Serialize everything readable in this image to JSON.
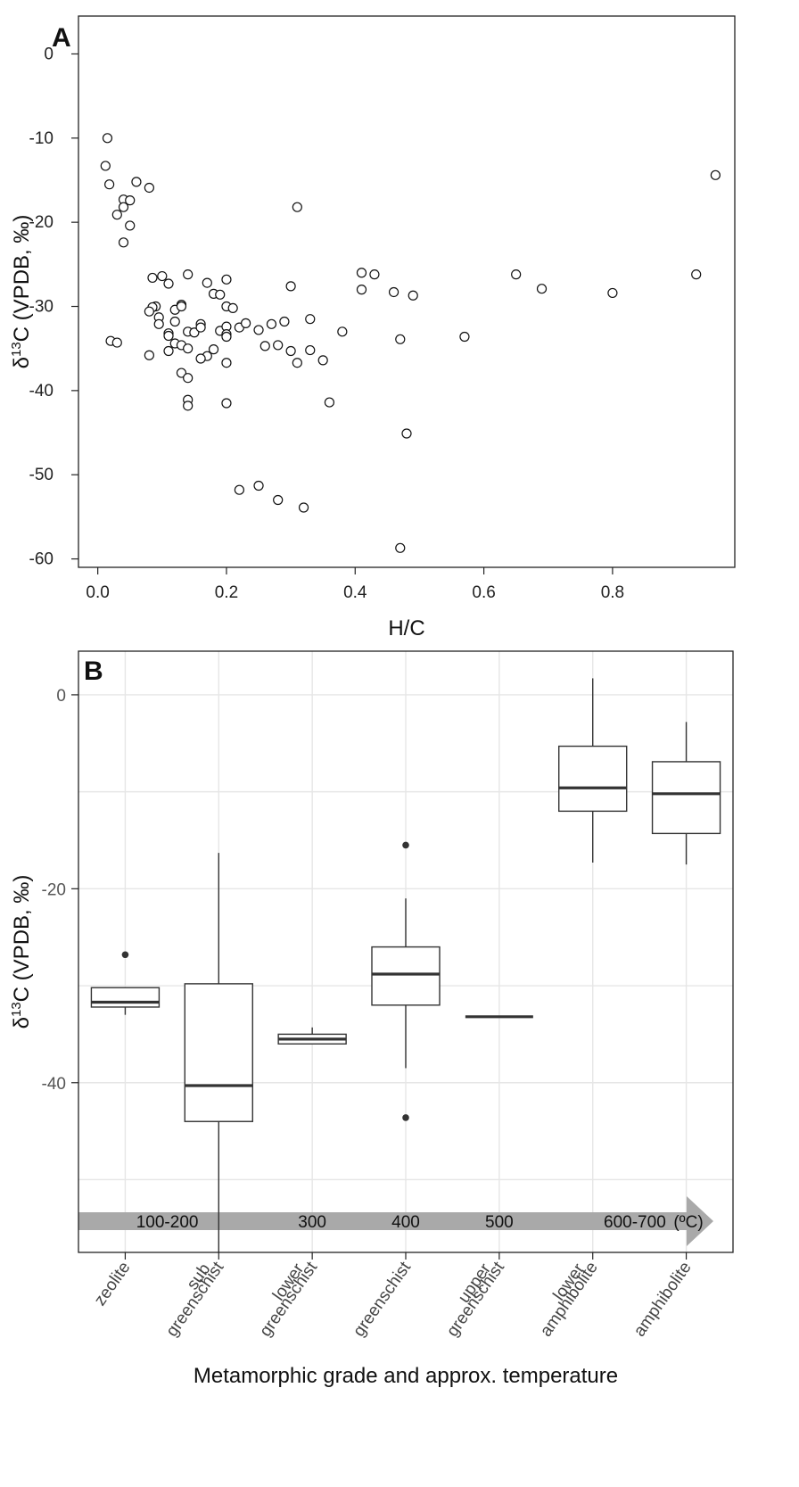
{
  "chart_data": [
    {
      "type": "scatter",
      "panel": "A",
      "xlabel": "H/C",
      "ylabel": "δ13C (VPDB, ‰)",
      "xlim": [
        -0.03,
        0.99
      ],
      "ylim": [
        -61,
        4.5
      ],
      "xticks": [
        0.0,
        0.2,
        0.4,
        0.6,
        0.8
      ],
      "xtick_labels": [
        "0.0",
        "0.2",
        "0.4",
        "0.6",
        "0.8"
      ],
      "yticks": [
        0,
        -10,
        -20,
        -30,
        -40,
        -50,
        -60
      ],
      "ytick_labels": [
        "0",
        "-10",
        "-20",
        "-30",
        "-40",
        "-50",
        "-60"
      ],
      "points": [
        [
          0.015,
          -10
        ],
        [
          0.012,
          -13.3
        ],
        [
          0.018,
          -15.5
        ],
        [
          0.06,
          -15.2
        ],
        [
          0.08,
          -15.9
        ],
        [
          0.04,
          -17.3
        ],
        [
          0.05,
          -17.4
        ],
        [
          0.04,
          -18.2
        ],
        [
          0.03,
          -19.1
        ],
        [
          0.05,
          -20.4
        ],
        [
          0.04,
          -22.4
        ],
        [
          0.31,
          -18.2
        ],
        [
          0.96,
          -14.4
        ],
        [
          0.02,
          -34.1
        ],
        [
          0.03,
          -34.3
        ],
        [
          0.08,
          -35.8
        ],
        [
          0.085,
          -26.6
        ],
        [
          0.1,
          -26.4
        ],
        [
          0.11,
          -27.3
        ],
        [
          0.14,
          -26.2
        ],
        [
          0.17,
          -27.2
        ],
        [
          0.2,
          -26.8
        ],
        [
          0.18,
          -28.5
        ],
        [
          0.19,
          -28.6
        ],
        [
          0.09,
          -30.0
        ],
        [
          0.085,
          -30.1
        ],
        [
          0.08,
          -30.6
        ],
        [
          0.095,
          -31.3
        ],
        [
          0.095,
          -32.1
        ],
        [
          0.12,
          -30.4
        ],
        [
          0.13,
          -29.8
        ],
        [
          0.13,
          -30.0
        ],
        [
          0.12,
          -31.8
        ],
        [
          0.11,
          -33.2
        ],
        [
          0.11,
          -33.5
        ],
        [
          0.12,
          -34.4
        ],
        [
          0.13,
          -34.6
        ],
        [
          0.14,
          -35.0
        ],
        [
          0.11,
          -35.3
        ],
        [
          0.14,
          -33.0
        ],
        [
          0.15,
          -33.1
        ],
        [
          0.16,
          -32.1
        ],
        [
          0.16,
          -32.5
        ],
        [
          0.19,
          -32.9
        ],
        [
          0.2,
          -32.4
        ],
        [
          0.2,
          -33.3
        ],
        [
          0.2,
          -33.6
        ],
        [
          0.18,
          -35.1
        ],
        [
          0.17,
          -35.9
        ],
        [
          0.16,
          -36.2
        ],
        [
          0.2,
          -30.0
        ],
        [
          0.21,
          -30.2
        ],
        [
          0.22,
          -32.5
        ],
        [
          0.23,
          -32.0
        ],
        [
          0.25,
          -32.8
        ],
        [
          0.27,
          -32.1
        ],
        [
          0.29,
          -31.8
        ],
        [
          0.26,
          -34.7
        ],
        [
          0.28,
          -34.6
        ],
        [
          0.3,
          -35.3
        ],
        [
          0.33,
          -35.2
        ],
        [
          0.33,
          -31.5
        ],
        [
          0.3,
          -27.6
        ],
        [
          0.31,
          -36.7
        ],
        [
          0.35,
          -36.4
        ],
        [
          0.38,
          -33.0
        ],
        [
          0.2,
          -36.7
        ],
        [
          0.13,
          -37.9
        ],
        [
          0.14,
          -38.5
        ],
        [
          0.14,
          -41.1
        ],
        [
          0.14,
          -41.8
        ],
        [
          0.2,
          -41.5
        ],
        [
          0.36,
          -41.4
        ],
        [
          0.41,
          -26.0
        ],
        [
          0.43,
          -26.2
        ],
        [
          0.41,
          -28.0
        ],
        [
          0.46,
          -28.3
        ],
        [
          0.49,
          -28.7
        ],
        [
          0.47,
          -33.9
        ],
        [
          0.57,
          -33.6
        ],
        [
          0.65,
          -26.2
        ],
        [
          0.69,
          -27.9
        ],
        [
          0.8,
          -28.4
        ],
        [
          0.93,
          -26.2
        ],
        [
          0.48,
          -45.1
        ],
        [
          0.22,
          -51.8
        ],
        [
          0.25,
          -51.3
        ],
        [
          0.28,
          -53.0
        ],
        [
          0.32,
          -53.9
        ],
        [
          0.47,
          -58.7
        ]
      ]
    },
    {
      "type": "box",
      "panel": "B",
      "xlabel": "Metamorphic grade and approx. temperature",
      "ylabel": "δ13C (VPDB, ‰)",
      "ylim": [
        -57.5,
        4.5
      ],
      "yticks": [
        0,
        -20,
        -40
      ],
      "ytick_labels": [
        "0",
        "-20",
        "-40"
      ],
      "minor_grid_y": [
        -10,
        -30,
        -50
      ],
      "categories": [
        "zeolite",
        "sub greenschist",
        "lower greenschist",
        "greenschist",
        "upper greenschist",
        "lower amphibolite",
        "amphibolite"
      ],
      "category_lines": [
        [
          "zeolite"
        ],
        [
          "sub",
          "greenschist"
        ],
        [
          "lower",
          "greenschist"
        ],
        [
          "greenschist"
        ],
        [
          "upper",
          "greenschist"
        ],
        [
          "lower",
          "amphibolite"
        ],
        [
          "amphibolite"
        ]
      ],
      "boxes": [
        {
          "min": -33.0,
          "q1": -32.2,
          "median": -31.7,
          "q3": -30.2,
          "max": -30.2,
          "outliers": [
            -26.8
          ]
        },
        {
          "min": -57.5,
          "q1": -44.0,
          "median": -40.3,
          "q3": -29.8,
          "max": -16.3,
          "outliers": []
        },
        {
          "min": -36.0,
          "q1": -36.0,
          "median": -35.5,
          "q3": -35.0,
          "max": -34.3,
          "outliers": []
        },
        {
          "min": -38.5,
          "q1": -32.0,
          "median": -28.8,
          "q3": -26.0,
          "max": -21.0,
          "outliers": [
            -15.5,
            -43.6
          ]
        },
        {
          "min": -33.2,
          "q1": -33.2,
          "median": -33.2,
          "q3": -33.2,
          "max": -33.2,
          "outliers": []
        },
        {
          "min": -17.3,
          "q1": -12.0,
          "median": -9.6,
          "q3": -5.3,
          "max": 1.7,
          "outliers": []
        },
        {
          "min": -17.5,
          "q1": -14.3,
          "median": -10.2,
          "q3": -6.9,
          "max": -2.8,
          "outliers": []
        }
      ],
      "temperature_arrow": {
        "labels": [
          {
            "text": "100-200",
            "at": 0.45
          },
          {
            "text": "300",
            "at": 2
          },
          {
            "text": "400",
            "at": 3
          },
          {
            "text": "500",
            "at": 4
          },
          {
            "text": "600-700",
            "at": 5.45
          }
        ],
        "unit": "(ºC)"
      }
    }
  ]
}
